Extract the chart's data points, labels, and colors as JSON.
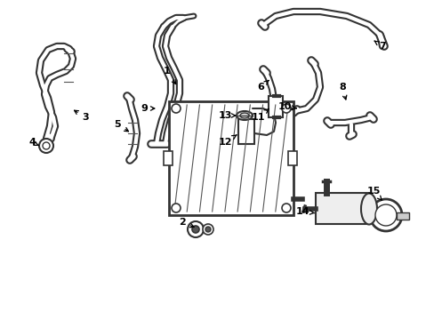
{
  "bg_color": "#ffffff",
  "line_color": "#333333",
  "label_color": "#000000",
  "lw_hose": 2.0,
  "lw_outer": 4.0,
  "figsize": [
    4.89,
    3.6
  ],
  "dpi": 100
}
